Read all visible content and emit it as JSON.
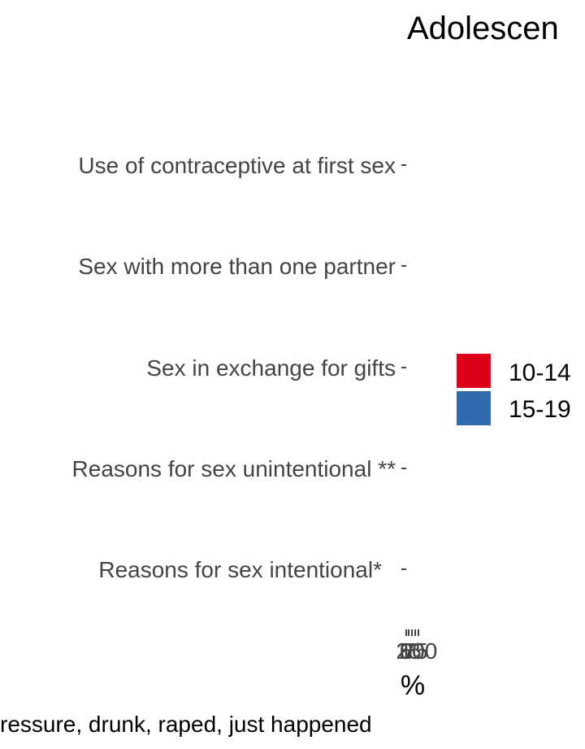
{
  "chart_data": {
    "type": "bar",
    "orientation": "horizontal",
    "title": "Adolescen",
    "categories": [
      "Use of contraceptive at first sex",
      "Sex with more than one partner",
      "Sex in exchange for gifts",
      "Reasons for sex unintentional **",
      "Reasons for sex intentional*"
    ],
    "series": [
      {
        "name": "10-14",
        "color": "#DE0019",
        "values": [
          null,
          null,
          null,
          null,
          null
        ]
      },
      {
        "name": "15-19",
        "color": "#2E6AAC",
        "values": [
          null,
          null,
          null,
          null,
          null
        ]
      }
    ],
    "xlabel": "%",
    "x_ticks": [
      "0",
      "25",
      "50",
      "75",
      "100"
    ],
    "ylabel": "",
    "legend_position": "right",
    "grid": false,
    "footnote": "ressure, drunk, raped, just happened"
  }
}
